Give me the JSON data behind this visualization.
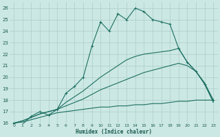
{
  "xlabel": "Humidex (Indice chaleur)",
  "bg_color": "#cce8e4",
  "grid_color": "#aaccc8",
  "line_color": "#1a6e60",
  "xlim": [
    -0.5,
    23.5
  ],
  "ylim": [
    16,
    26.5
  ],
  "yticks": [
    16,
    17,
    18,
    19,
    20,
    21,
    22,
    23,
    24,
    25,
    26
  ],
  "xticks": [
    0,
    1,
    2,
    3,
    4,
    5,
    6,
    7,
    8,
    9,
    10,
    11,
    12,
    13,
    14,
    15,
    16,
    17,
    18,
    19,
    20,
    21,
    22,
    23
  ],
  "series0": {
    "x": [
      0,
      1,
      2,
      3,
      4,
      5,
      6,
      7,
      8,
      9,
      10,
      11,
      12,
      13,
      14,
      15,
      16,
      17,
      18,
      19,
      20,
      21,
      22,
      23
    ],
    "y": [
      16.0,
      15.9,
      16.6,
      17.0,
      16.7,
      17.2,
      18.6,
      19.2,
      20.0,
      22.7,
      24.8,
      24.0,
      25.5,
      25.0,
      26.0,
      25.7,
      25.0,
      24.8,
      24.6,
      22.5,
      21.3,
      20.5,
      19.4,
      18.0
    ]
  },
  "series1": {
    "x": [
      0,
      1,
      2,
      3,
      4,
      5,
      6,
      7,
      8,
      9,
      10,
      11,
      12,
      13,
      14,
      15,
      16,
      17,
      18,
      19,
      20,
      21,
      22,
      23
    ],
    "y": [
      16.0,
      16.1,
      16.3,
      16.5,
      16.7,
      16.9,
      17.0,
      17.1,
      17.2,
      17.3,
      17.4,
      17.4,
      17.5,
      17.5,
      17.6,
      17.6,
      17.7,
      17.7,
      17.8,
      17.9,
      17.9,
      18.0,
      18.0,
      18.0
    ]
  },
  "series2": {
    "x": [
      0,
      1,
      2,
      3,
      4,
      5,
      6,
      7,
      8,
      9,
      10,
      11,
      12,
      13,
      14,
      15,
      16,
      17,
      18,
      19,
      20,
      21,
      22,
      23
    ],
    "y": [
      16.0,
      16.2,
      16.5,
      16.8,
      17.0,
      17.2,
      17.5,
      17.8,
      18.1,
      18.5,
      18.9,
      19.2,
      19.5,
      19.8,
      20.1,
      20.4,
      20.6,
      20.8,
      21.0,
      21.2,
      21.0,
      20.5,
      19.5,
      18.0
    ]
  },
  "series3": {
    "x": [
      0,
      1,
      2,
      3,
      4,
      5,
      6,
      7,
      8,
      9,
      10,
      11,
      12,
      13,
      14,
      15,
      16,
      17,
      18,
      19,
      20,
      21,
      22,
      23
    ],
    "y": [
      16.0,
      16.2,
      16.5,
      16.8,
      17.0,
      17.2,
      17.8,
      18.3,
      18.8,
      19.4,
      20.0,
      20.5,
      21.0,
      21.5,
      21.8,
      22.0,
      22.1,
      22.2,
      22.3,
      22.5,
      21.3,
      20.5,
      19.4,
      17.8
    ]
  }
}
